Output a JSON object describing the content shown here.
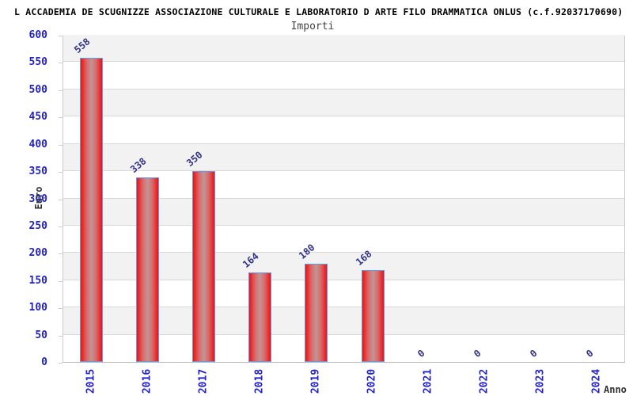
{
  "header": {
    "title": "L ACCADEMIA DE SCUGNIZZE ASSOCIAZIONE CULTURALE E LABORATORIO D ARTE FILO DRAMMATICA ONLUS (c.f.92037170690)"
  },
  "chart": {
    "subtitle": "Importi",
    "ylabel": "Euro",
    "xlabel": "Anno"
  },
  "chart_data": {
    "type": "bar",
    "title": "Importi",
    "categories": [
      "2015",
      "2016",
      "2017",
      "2018",
      "2019",
      "2020",
      "2021",
      "2022",
      "2023",
      "2024"
    ],
    "values": [
      558,
      338,
      350,
      164,
      180,
      168,
      0,
      0,
      0,
      0
    ],
    "xlabel": "Anno",
    "ylabel": "Euro",
    "ylim": [
      0,
      600
    ],
    "ytick_step": 50,
    "grid": "horizontal-bands-alternating",
    "legend": "none"
  },
  "colors": {
    "bar_fill_edge": "#ee1111",
    "bar_fill_center": "#c39494",
    "bar_border": "#6699ee",
    "axis_tick_label": "#2222cc",
    "value_label": "#333388",
    "band_gray": "#f2f2f2",
    "band_white": "#ffffff",
    "gridline": "#d9d9d9",
    "plot_border": "#cccccc",
    "title_color": "#000000",
    "subtitle_color": "#444444",
    "axis_title_color": "#333333"
  }
}
